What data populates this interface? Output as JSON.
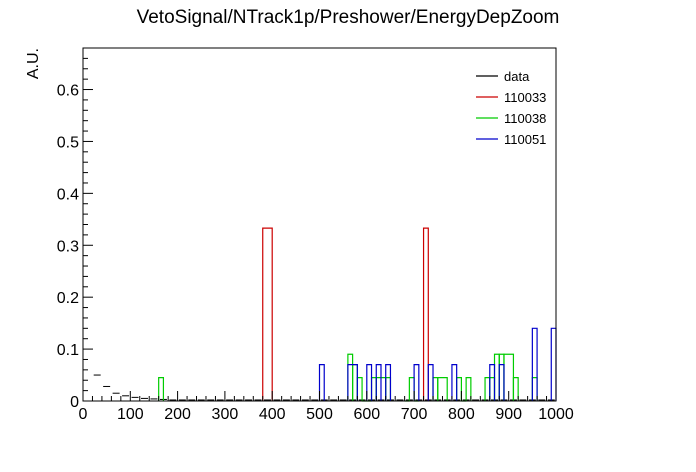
{
  "chart_data": {
    "type": "histogram",
    "title": "VetoSignal/NTrack1p/Preshower/EnergyDepZoom",
    "xlabel": "",
    "ylabel": "A.U.",
    "xlim": [
      0,
      1000
    ],
    "ylim": [
      0,
      0.68
    ],
    "bin_width": 20,
    "x_ticks": [
      0,
      100,
      200,
      300,
      400,
      500,
      600,
      700,
      800,
      900,
      1000
    ],
    "y_ticks": [
      0,
      0.1,
      0.2,
      0.3,
      0.4,
      0.5,
      0.6
    ],
    "y_tick_labels": [
      "0",
      "0.1",
      "0.2",
      "0.3",
      "0.4",
      "0.5",
      "0.6"
    ],
    "grid": false,
    "legend_position": "top-right",
    "series": [
      {
        "name": "data",
        "style": "markers",
        "color": "#000000",
        "x": [
          30,
          50,
          70,
          90,
          110,
          130,
          150,
          170,
          190,
          210,
          230,
          250,
          270,
          290,
          310,
          330,
          350,
          370,
          390,
          410,
          430,
          450,
          470,
          490,
          510,
          530,
          550,
          570,
          590,
          610,
          630,
          650,
          670,
          690,
          710,
          730,
          750,
          770,
          790,
          810,
          830,
          850,
          870,
          890,
          910,
          930,
          950,
          970,
          990
        ],
        "values": [
          0.05,
          0.028,
          0.015,
          0.01,
          0.007,
          0.005,
          0.004,
          0.003,
          0.002,
          0.002,
          0.002,
          0.002,
          0.002,
          0.002,
          0.002,
          0.002,
          0.002,
          0.002,
          0.002,
          0.002,
          0.002,
          0.002,
          0.002,
          0.002,
          0.002,
          0.002,
          0.002,
          0.002,
          0.002,
          0.002,
          0.002,
          0.002,
          0.002,
          0.002,
          0.002,
          0.002,
          0.002,
          0.002,
          0.002,
          0.002,
          0.002,
          0.002,
          0.002,
          0.002,
          0.002,
          0.002,
          0.002,
          0.002,
          0.002
        ]
      },
      {
        "name": "110033",
        "style": "step",
        "color": "#cc0000",
        "bins": [
          [
            380,
            400,
            0.333
          ],
          [
            720,
            730,
            0.333
          ]
        ]
      },
      {
        "name": "110038",
        "style": "step",
        "color": "#00cc00",
        "bins": [
          [
            160,
            170,
            0.045
          ],
          [
            560,
            570,
            0.09
          ],
          [
            570,
            580,
            0.07
          ],
          [
            580,
            590,
            0.045
          ],
          [
            590,
            600,
            0.0
          ],
          [
            600,
            610,
            0.0
          ],
          [
            610,
            620,
            0.045
          ],
          [
            620,
            640,
            0.045
          ],
          [
            640,
            650,
            0.045
          ],
          [
            680,
            690,
            0.0
          ],
          [
            690,
            700,
            0.045
          ],
          [
            700,
            710,
            0.0
          ],
          [
            740,
            750,
            0.045
          ],
          [
            750,
            770,
            0.045
          ],
          [
            790,
            800,
            0.045
          ],
          [
            800,
            810,
            0.0
          ],
          [
            810,
            820,
            0.045
          ],
          [
            850,
            860,
            0.045
          ],
          [
            860,
            870,
            0.045
          ],
          [
            870,
            880,
            0.09
          ],
          [
            880,
            890,
            0.09
          ],
          [
            890,
            910,
            0.09
          ],
          [
            910,
            920,
            0.045
          ],
          [
            950,
            960,
            0.045
          ]
        ]
      },
      {
        "name": "110051",
        "style": "step",
        "color": "#0000cc",
        "bins": [
          [
            500,
            510,
            0.07
          ],
          [
            560,
            580,
            0.07
          ],
          [
            600,
            610,
            0.07
          ],
          [
            620,
            630,
            0.07
          ],
          [
            640,
            650,
            0.07
          ],
          [
            700,
            710,
            0.07
          ],
          [
            730,
            740,
            0.07
          ],
          [
            780,
            790,
            0.07
          ],
          [
            860,
            870,
            0.07
          ],
          [
            880,
            890,
            0.07
          ],
          [
            950,
            960,
            0.14
          ],
          [
            990,
            1000,
            0.14
          ]
        ]
      }
    ]
  }
}
